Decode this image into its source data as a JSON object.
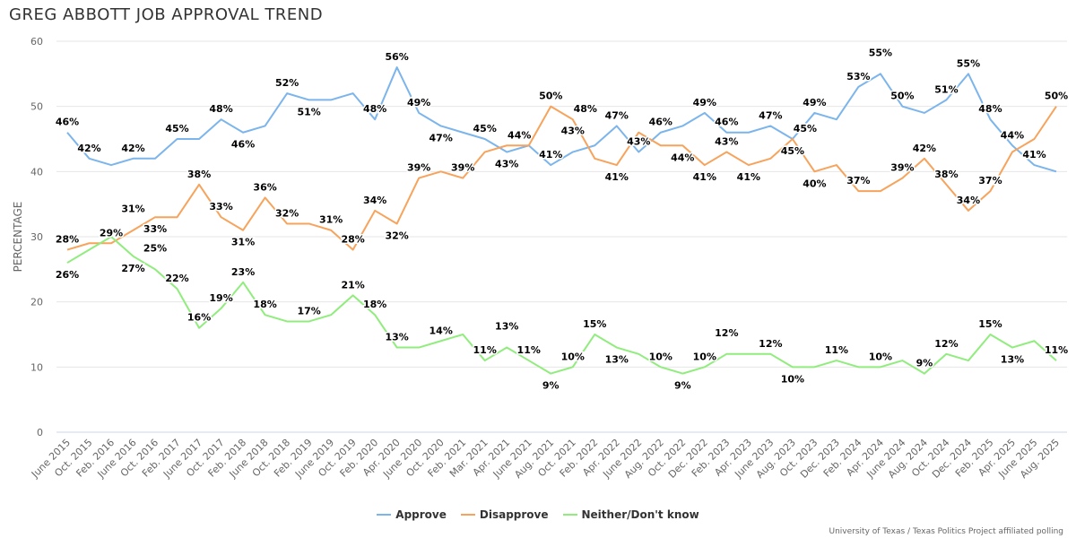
{
  "title": "GREG ABBOTT JOB APPROVAL TREND",
  "credit": "University of Texas / Texas Politics Project affiliated polling",
  "chart_data": {
    "type": "line",
    "title": "GREG ABBOTT JOB APPROVAL TREND",
    "xlabel": "",
    "ylabel": "PERCENTAGE",
    "ylim": [
      0,
      60
    ],
    "yticks": [
      0,
      10,
      20,
      30,
      40,
      50,
      60
    ],
    "grid": true,
    "legend": "bottom-center",
    "categories": [
      "June 2015",
      "Oct. 2015",
      "Feb. 2016",
      "June 2016",
      "Oct. 2016",
      "Feb. 2017",
      "June 2017",
      "Oct. 2017",
      "Feb. 2018",
      "June 2018",
      "Oct. 2018",
      "Feb. 2019",
      "June 2019",
      "Oct. 2019",
      "Feb. 2020",
      "Apr. 2020",
      "June 2020",
      "Oct. 2020",
      "Feb. 2021",
      "Mar. 2021",
      "Apr. 2021",
      "June 2021",
      "Aug. 2021",
      "Oct. 2021",
      "Feb. 2022",
      "Apr. 2022",
      "June 2022",
      "Aug. 2022",
      "Oct. 2022",
      "Dec. 2022",
      "Feb. 2023",
      "Apr. 2023",
      "June 2023",
      "Aug. 2023",
      "Oct. 2023",
      "Dec. 2023",
      "Feb. 2024",
      "Apr. 2024",
      "June 2024",
      "Aug. 2024",
      "Oct. 2024",
      "Dec. 2024",
      "Feb. 2025",
      "Apr. 2025",
      "June 2025",
      "Aug. 2025"
    ],
    "series": [
      {
        "name": "Approve",
        "color": "#7cb5ec",
        "values": [
          46,
          42,
          41,
          42,
          42,
          45,
          45,
          48,
          46,
          47,
          52,
          51,
          51,
          52,
          48,
          56,
          49,
          47,
          46,
          45,
          43,
          44,
          41,
          43,
          44,
          47,
          43,
          46,
          47,
          49,
          46,
          46,
          47,
          45,
          49,
          48,
          53,
          55,
          50,
          49,
          51,
          55,
          48,
          44,
          41,
          40
        ],
        "labeled": [
          0,
          1,
          3,
          5,
          7,
          8,
          10,
          11,
          14,
          15,
          16,
          17,
          19,
          20,
          22,
          23,
          25,
          26,
          27,
          29,
          30,
          32,
          33,
          34,
          36,
          37,
          38,
          40,
          41,
          42,
          43,
          44
        ]
      },
      {
        "name": "Disapprove",
        "color": "#f7a35c",
        "values": [
          28,
          29,
          29,
          31,
          33,
          33,
          38,
          33,
          31,
          36,
          32,
          32,
          31,
          28,
          34,
          32,
          39,
          40,
          39,
          43,
          44,
          44,
          50,
          48,
          42,
          41,
          46,
          44,
          44,
          41,
          43,
          41,
          42,
          45,
          40,
          41,
          37,
          37,
          39,
          42,
          38,
          34,
          37,
          43,
          45,
          50
        ],
        "labeled": [
          0,
          2,
          3,
          4,
          6,
          7,
          8,
          9,
          10,
          12,
          13,
          14,
          15,
          16,
          18,
          20,
          22,
          23,
          25,
          28,
          29,
          30,
          31,
          33,
          34,
          36,
          38,
          39,
          40,
          41,
          42,
          45
        ]
      },
      {
        "name": "Neither/Don't know",
        "color": "#90ed7d",
        "values": [
          26,
          28,
          30,
          27,
          25,
          22,
          16,
          19,
          23,
          18,
          17,
          17,
          18,
          21,
          18,
          13,
          13,
          14,
          15,
          11,
          13,
          11,
          9,
          10,
          15,
          13,
          12,
          10,
          9,
          10,
          12,
          12,
          12,
          10,
          10,
          11,
          10,
          10,
          11,
          9,
          12,
          11,
          15,
          13,
          14,
          11
        ],
        "labeled": [
          0,
          3,
          4,
          5,
          6,
          7,
          8,
          9,
          11,
          13,
          14,
          15,
          17,
          19,
          20,
          21,
          22,
          23,
          24,
          25,
          27,
          28,
          29,
          30,
          32,
          33,
          35,
          37,
          39,
          40,
          42,
          43,
          45
        ]
      }
    ]
  }
}
